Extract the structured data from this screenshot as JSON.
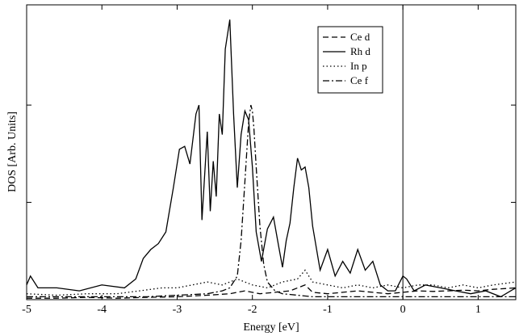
{
  "chart_data": {
    "type": "line",
    "title": "",
    "xlabel": "Energy [eV]",
    "ylabel": "DOS [Arb. Units]",
    "xlim": [
      -5,
      1.5
    ],
    "ylim": [
      0,
      100
    ],
    "x_ticks": [
      -5,
      -4,
      -3,
      -2,
      -1,
      0,
      1
    ],
    "x_tick_labels": [
      "-5",
      "-4",
      "-3",
      "-2",
      "-1",
      "0",
      "1"
    ],
    "y_ticks": [
      33,
      66
    ],
    "y_tick_labels": [],
    "fermi_level": 0,
    "grid": false,
    "legend_position": "top-center",
    "series": [
      {
        "name": "Ce d",
        "style": "dashed",
        "x": [
          -5,
          -4.6,
          -4.2,
          -3.8,
          -3.4,
          -3.0,
          -2.6,
          -2.3,
          -2.1,
          -1.9,
          -1.7,
          -1.5,
          -1.3,
          -1.2,
          -1.0,
          -0.8,
          -0.6,
          -0.4,
          -0.2,
          0,
          0.2,
          0.4,
          0.6,
          0.8,
          1.0,
          1.2,
          1.5
        ],
        "y": [
          0.5,
          0.5,
          0.8,
          0.5,
          0.8,
          1.0,
          1.5,
          2.0,
          3.0,
          2.0,
          2.5,
          3.0,
          5.0,
          2.5,
          2.0,
          2.5,
          3.0,
          2.5,
          2.0,
          2.5,
          3.0,
          2.8,
          3.0,
          3.2,
          3.0,
          3.5,
          4.0
        ]
      },
      {
        "name": "Rh d",
        "style": "solid",
        "x": [
          -5,
          -4.95,
          -4.85,
          -4.6,
          -4.3,
          -4.0,
          -3.7,
          -3.55,
          -3.45,
          -3.35,
          -3.25,
          -3.15,
          -3.05,
          -2.97,
          -2.9,
          -2.83,
          -2.75,
          -2.71,
          -2.67,
          -2.6,
          -2.56,
          -2.52,
          -2.48,
          -2.44,
          -2.4,
          -2.36,
          -2.3,
          -2.25,
          -2.2,
          -2.15,
          -2.1,
          -2.05,
          -2.0,
          -1.95,
          -1.88,
          -1.8,
          -1.72,
          -1.65,
          -1.6,
          -1.55,
          -1.5,
          -1.45,
          -1.4,
          -1.35,
          -1.3,
          -1.25,
          -1.2,
          -1.1,
          -1.0,
          -0.9,
          -0.8,
          -0.7,
          -0.6,
          -0.5,
          -0.4,
          -0.3,
          -0.2,
          -0.1,
          0.0,
          0.05,
          0.15,
          0.3,
          0.5,
          0.7,
          0.9,
          1.1,
          1.3,
          1.5
        ],
        "y": [
          5,
          8,
          4,
          4,
          3,
          5,
          4,
          7,
          14,
          17,
          19,
          23,
          38,
          51,
          52,
          46,
          63,
          66,
          27,
          57,
          30,
          47,
          35,
          63,
          56,
          85,
          95,
          63,
          38,
          56,
          64,
          61,
          45,
          23,
          13,
          24,
          28,
          18,
          11,
          20,
          26,
          38,
          48,
          44,
          45,
          38,
          25,
          10,
          17,
          8,
          13,
          9,
          17,
          10,
          13,
          5,
          3,
          3,
          8,
          7,
          3,
          5,
          4,
          3,
          2,
          3,
          1,
          4
        ]
      },
      {
        "name": "In p",
        "style": "dotted",
        "x": [
          -5,
          -4.6,
          -4.2,
          -3.8,
          -3.5,
          -3.2,
          -3.0,
          -2.8,
          -2.6,
          -2.4,
          -2.2,
          -2.0,
          -1.8,
          -1.6,
          -1.4,
          -1.3,
          -1.2,
          -1.0,
          -0.8,
          -0.6,
          -0.4,
          -0.2,
          0,
          0.2,
          0.4,
          0.6,
          0.8,
          1.0,
          1.2,
          1.5
        ],
        "y": [
          2,
          1.5,
          2,
          2,
          3,
          4,
          4,
          5,
          6,
          5,
          7,
          5,
          4,
          6,
          7,
          10,
          6,
          5,
          4,
          5,
          4,
          5,
          4,
          5,
          5,
          4,
          5,
          4,
          5,
          6
        ]
      },
      {
        "name": "Ce f",
        "style": "dashdot",
        "x": [
          -5,
          -4.6,
          -4.2,
          -3.8,
          -3.4,
          -3.0,
          -2.6,
          -2.4,
          -2.3,
          -2.2,
          -2.15,
          -2.1,
          -2.05,
          -2.02,
          -2.0,
          -1.98,
          -1.95,
          -1.9,
          -1.85,
          -1.8,
          -1.7,
          -1.6,
          -1.4,
          -1.2,
          -1.0,
          -0.8,
          -0.5,
          -0.2,
          0,
          0.2,
          0.4,
          0.6,
          0.8,
          1.0,
          1.2,
          1.5
        ],
        "y": [
          1,
          1,
          1,
          1,
          1,
          1.5,
          2,
          3,
          4,
          8,
          20,
          40,
          60,
          66,
          64,
          58,
          45,
          25,
          12,
          6,
          3,
          2,
          1.5,
          1,
          1,
          1,
          1,
          1,
          1,
          1,
          1,
          1,
          1,
          1,
          1,
          1
        ]
      }
    ]
  }
}
